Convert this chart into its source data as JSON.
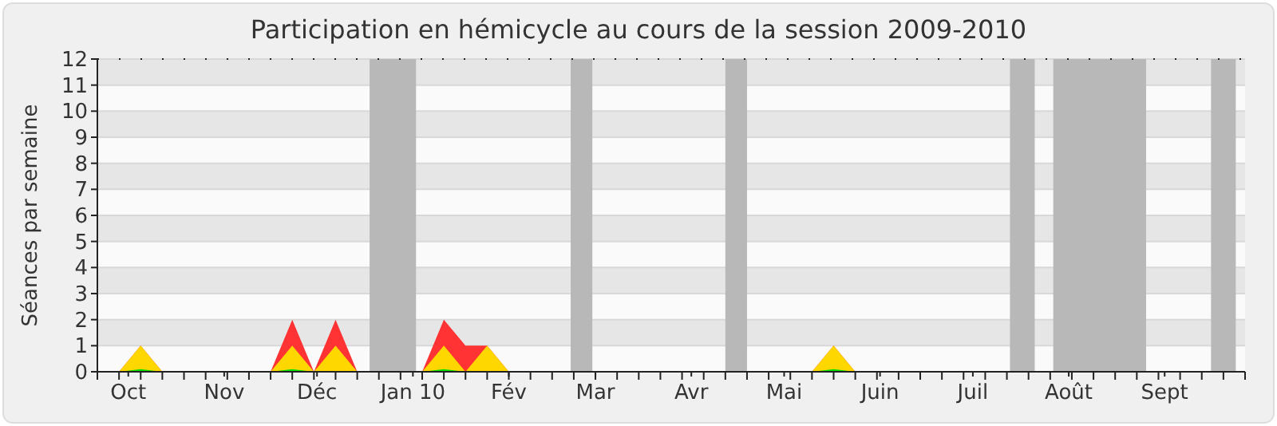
{
  "chart_data": {
    "type": "area",
    "title": "Participation en hémicycle au cours de la session 2009-2010",
    "ylabel": "Séances par semaine",
    "x": [
      "2009-09-21",
      "2009-09-28",
      "2009-10-05",
      "2009-10-12",
      "2009-10-19",
      "2009-10-26",
      "2009-11-02",
      "2009-11-09",
      "2009-11-16",
      "2009-11-23",
      "2009-11-30",
      "2009-12-07",
      "2009-12-14",
      "2009-12-21",
      "2009-12-28",
      "2010-01-04",
      "2010-01-11",
      "2010-01-18",
      "2010-01-25",
      "2010-02-01",
      "2010-02-08",
      "2010-02-15",
      "2010-02-22",
      "2010-03-01",
      "2010-03-08",
      "2010-03-15",
      "2010-03-22",
      "2010-03-29",
      "2010-04-05",
      "2010-04-12",
      "2010-04-19",
      "2010-04-26",
      "2010-05-03",
      "2010-05-10",
      "2010-05-17",
      "2010-05-24",
      "2010-05-31",
      "2010-06-07",
      "2010-06-14",
      "2010-06-21",
      "2010-06-28",
      "2010-07-05",
      "2010-07-12",
      "2010-07-19",
      "2010-07-26",
      "2010-08-02",
      "2010-08-09",
      "2010-08-16",
      "2010-08-23",
      "2010-08-30",
      "2010-09-06",
      "2010-09-13",
      "2010-09-20",
      "2010-09-27"
    ],
    "series": [
      {
        "color": "#ff3333",
        "values": [
          0,
          0,
          1,
          0,
          0,
          0,
          0,
          0,
          0,
          2,
          0,
          2,
          0,
          0,
          0,
          0,
          2,
          1,
          1,
          0,
          0,
          0,
          0,
          0,
          0,
          0,
          0,
          0,
          0,
          0,
          0,
          0,
          0,
          0,
          1,
          0,
          0,
          0,
          0,
          0,
          0,
          0,
          0,
          0,
          0,
          0,
          0,
          0,
          0,
          0,
          0,
          0,
          0,
          0
        ]
      },
      {
        "color": "#ffd700",
        "values": [
          0,
          0,
          1,
          0,
          0,
          0,
          0,
          0,
          0,
          1,
          0,
          1,
          0,
          0,
          0,
          0,
          1,
          0,
          1,
          0,
          0,
          0,
          0,
          0,
          0,
          0,
          0,
          0,
          0,
          0,
          0,
          0,
          0,
          0,
          1,
          0,
          0,
          0,
          0,
          0,
          0,
          0,
          0,
          0,
          0,
          0,
          0,
          0,
          0,
          0,
          0,
          0,
          0,
          0
        ]
      },
      {
        "color": "#00dd00",
        "values": [
          0,
          0,
          0.1,
          0,
          0,
          0,
          0,
          0,
          0,
          0.1,
          0,
          0,
          0,
          0,
          0,
          0,
          0.1,
          0,
          0,
          0,
          0,
          0,
          0,
          0,
          0,
          0,
          0,
          0,
          0,
          0,
          0,
          0,
          0,
          0,
          0.1,
          0,
          0,
          0,
          0,
          0,
          0,
          0,
          0,
          0,
          0,
          0,
          0,
          0,
          0,
          0,
          0,
          0,
          0,
          0
        ]
      }
    ],
    "xlim": [
      "2009-09-21",
      "2010-09-27"
    ],
    "xticks": [
      {
        "value": "2009-10-01",
        "label": "Oct"
      },
      {
        "value": "2009-11-01",
        "label": "Nov"
      },
      {
        "value": "2009-12-01",
        "label": "Déc"
      },
      {
        "value": "2010-01-01",
        "label": "Jan 10"
      },
      {
        "value": "2010-02-01",
        "label": "Fév"
      },
      {
        "value": "2010-03-01",
        "label": "Mar"
      },
      {
        "value": "2010-04-01",
        "label": "Avr"
      },
      {
        "value": "2010-05-01",
        "label": "Mai"
      },
      {
        "value": "2010-06-01",
        "label": "Juin"
      },
      {
        "value": "2010-07-01",
        "label": "Juil"
      },
      {
        "value": "2010-08-01",
        "label": "Août"
      },
      {
        "value": "2010-09-01",
        "label": "Sept"
      }
    ],
    "ylim": [
      0,
      12
    ],
    "yticks": [
      0,
      1,
      2,
      3,
      4,
      5,
      6,
      7,
      8,
      9,
      10,
      11,
      12
    ],
    "grid": "y",
    "bands": [
      {
        "axis": "x",
        "from": "2009-12-18",
        "to": "2010-01-02",
        "color": "#b8b8b8"
      },
      {
        "axis": "x",
        "from": "2010-02-21",
        "to": "2010-02-28",
        "color": "#b8b8b8"
      },
      {
        "axis": "x",
        "from": "2010-04-12",
        "to": "2010-04-19",
        "color": "#b8b8b8"
      },
      {
        "axis": "x",
        "from": "2010-07-13",
        "to": "2010-07-21",
        "color": "#b8b8b8"
      },
      {
        "axis": "x",
        "from": "2010-07-27",
        "to": "2010-08-26",
        "color": "#b8b8b8"
      },
      {
        "axis": "x",
        "from": "2010-09-16",
        "to": "2010-09-24",
        "color": "#b8b8b8"
      }
    ]
  }
}
